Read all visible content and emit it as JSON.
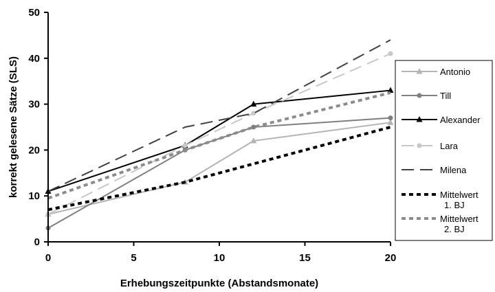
{
  "chart_data": {
    "type": "line",
    "title": "",
    "xlabel": "Erhebungszeitpunkte (Abstandsmonate)",
    "ylabel": "korrekt gelesene Sätze (SLS)",
    "xlim": [
      0,
      20
    ],
    "ylim": [
      0,
      50
    ],
    "x_ticks": [
      0,
      5,
      10,
      15,
      20
    ],
    "y_ticks": [
      0,
      10,
      20,
      30,
      40,
      50
    ],
    "grid": false,
    "legend_position": "right",
    "x": [
      0,
      8,
      12,
      20
    ],
    "series": [
      {
        "name": "Antonio",
        "values": [
          6,
          13,
          22,
          26
        ],
        "color": "#b4b4b4",
        "dash": "solid",
        "marker": "triangle"
      },
      {
        "name": "Till",
        "values": [
          3,
          20,
          25,
          27
        ],
        "color": "#7f7f7f",
        "dash": "solid",
        "marker": "circle"
      },
      {
        "name": "Alexander",
        "values": [
          11,
          21,
          30,
          33
        ],
        "color": "#000000",
        "dash": "solid",
        "marker": "triangle"
      },
      {
        "name": "Lara",
        "values": [
          6,
          21,
          28,
          41
        ],
        "color": "#c8c8c8",
        "dash": "longdash",
        "marker": "circle"
      },
      {
        "name": "Milena",
        "values": [
          11,
          25,
          28,
          44
        ],
        "color": "#404040",
        "dash": "longdash",
        "marker": "none"
      },
      {
        "name": "Mittelwert 1. BJ",
        "values": [
          7,
          13,
          17,
          25
        ],
        "color": "#000000",
        "dash": "dotted",
        "marker": "none"
      },
      {
        "name": "Mittelwert 2. BJ",
        "values": [
          9.5,
          20,
          25,
          32.5
        ],
        "color": "#8c8c8c",
        "dash": "dotted",
        "marker": "none"
      }
    ]
  }
}
